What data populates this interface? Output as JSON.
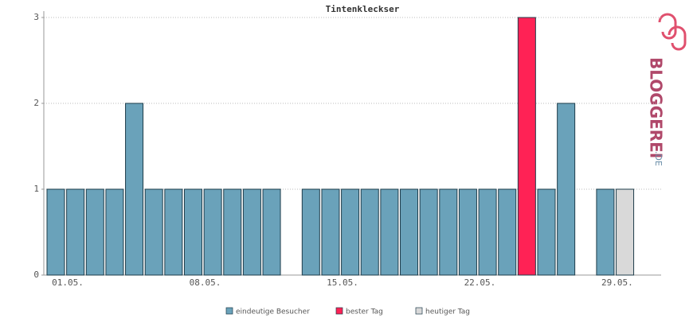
{
  "chart_data": {
    "type": "bar",
    "title": "Tintenkleckser",
    "categories": [
      "01.05.",
      null,
      null,
      null,
      null,
      null,
      null,
      "08.05.",
      null,
      null,
      null,
      null,
      null,
      null,
      "15.05.",
      null,
      null,
      null,
      null,
      null,
      null,
      "22.05.",
      null,
      null,
      null,
      null,
      null,
      null,
      "29.05.",
      null
    ],
    "series": [
      {
        "name": "eindeutige Besucher",
        "color": "#6aa2ba",
        "values": [
          1,
          1,
          1,
          1,
          2,
          1,
          1,
          1,
          1,
          1,
          1,
          1,
          0,
          1,
          1,
          1,
          1,
          1,
          1,
          1,
          1,
          1,
          1,
          1,
          null,
          1,
          2,
          0,
          1,
          null
        ]
      },
      {
        "name": "bester Tag",
        "color": "#ff2255",
        "values": [
          null,
          null,
          null,
          null,
          null,
          null,
          null,
          null,
          null,
          null,
          null,
          null,
          null,
          null,
          null,
          null,
          null,
          null,
          null,
          null,
          null,
          null,
          null,
          null,
          3,
          null,
          null,
          null,
          null,
          null
        ]
      },
      {
        "name": "heutiger Tag",
        "color": "#d9d9d9",
        "values": [
          null,
          null,
          null,
          null,
          null,
          null,
          null,
          null,
          null,
          null,
          null,
          null,
          null,
          null,
          null,
          null,
          null,
          null,
          null,
          null,
          null,
          null,
          null,
          null,
          null,
          null,
          null,
          null,
          null,
          1
        ]
      }
    ],
    "ylim": [
      0,
      3
    ],
    "yticks": [
      0,
      1,
      2,
      3
    ],
    "grid": true
  },
  "logo": {
    "name": "BLOGGEREI",
    "suffix": ".DE"
  }
}
